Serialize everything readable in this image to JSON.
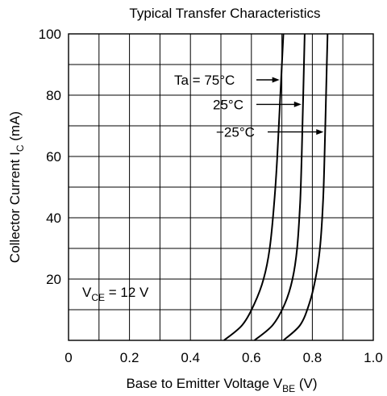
{
  "chart_data": {
    "type": "line",
    "title": "Typical Transfer Characteristics",
    "xlabel": {
      "main": "Base to Emitter Voltage  V",
      "sub": "BE",
      "unit": "  (V)"
    },
    "ylabel": {
      "main": "Collector Current  I",
      "sub": "C",
      "unit": "  (mA)"
    },
    "xlim": [
      0,
      1.0
    ],
    "ylim": [
      0,
      100
    ],
    "grid": true,
    "x_ticks": [
      "0",
      "0.2",
      "0.4",
      "0.6",
      "0.8",
      "1.0"
    ],
    "y_ticks": [
      "20",
      "40",
      "60",
      "80",
      "100"
    ],
    "condition": {
      "main": "V",
      "sub": "CE",
      "rest": " = 12 V"
    },
    "series": [
      {
        "name": "Ta = 75°C",
        "x": [
          0.51,
          0.57,
          0.61,
          0.64,
          0.66,
          0.675,
          0.685,
          0.695,
          0.705
        ],
        "y": [
          0,
          5,
          12,
          20,
          30,
          45,
          60,
          80,
          100
        ]
      },
      {
        "name": "25°C",
        "x": [
          0.61,
          0.67,
          0.71,
          0.735,
          0.75,
          0.76,
          0.765,
          0.77,
          0.775
        ],
        "y": [
          0,
          5,
          12,
          20,
          30,
          45,
          60,
          80,
          100
        ]
      },
      {
        "name": "−25°C",
        "x": [
          0.705,
          0.76,
          0.79,
          0.81,
          0.825,
          0.835,
          0.84,
          0.845,
          0.85
        ],
        "y": [
          0,
          5,
          12,
          20,
          30,
          45,
          60,
          80,
          100
        ]
      }
    ]
  }
}
